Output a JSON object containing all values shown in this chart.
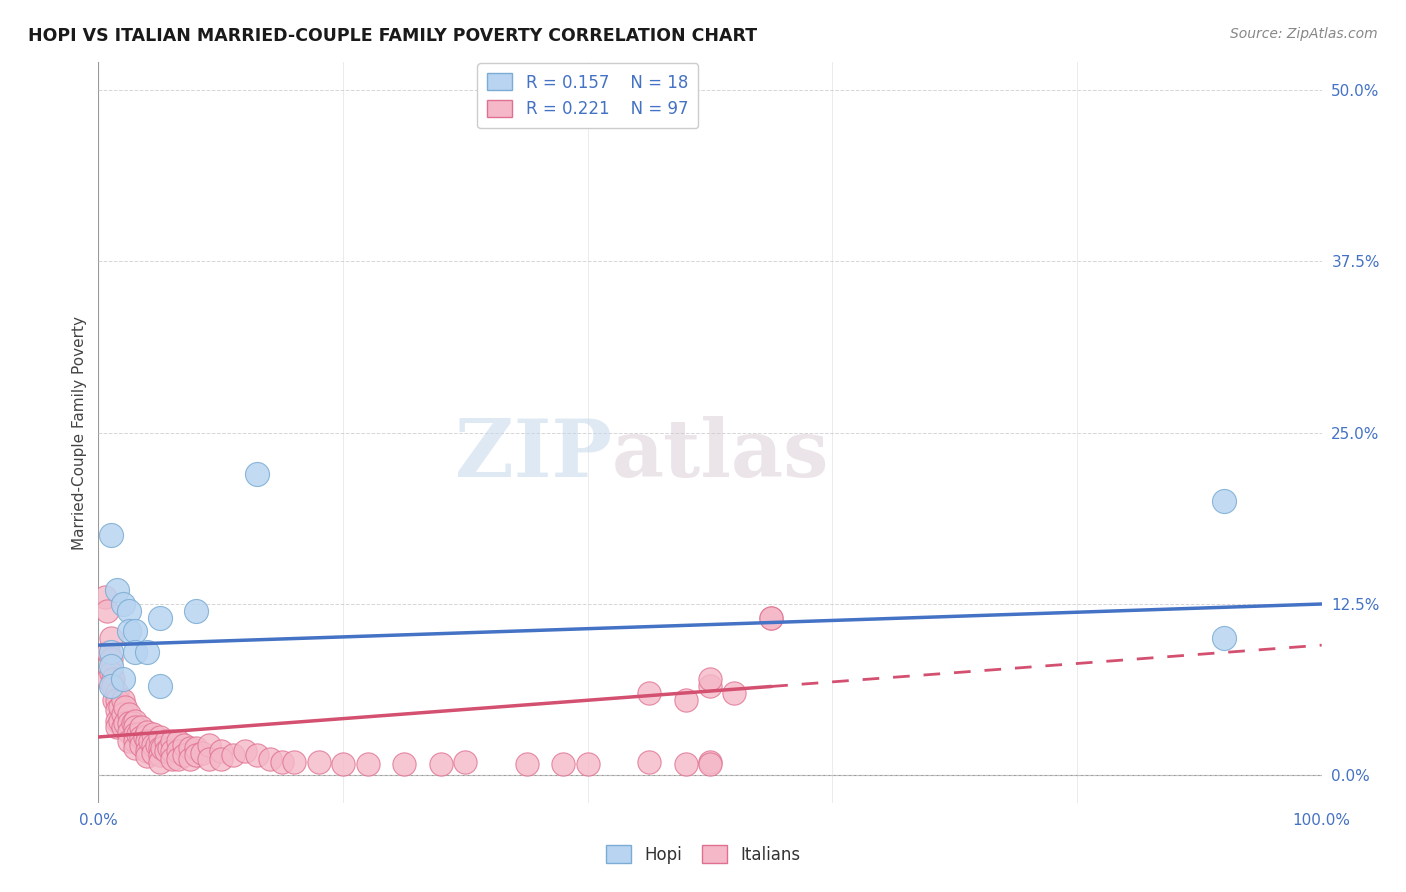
{
  "title": "HOPI VS ITALIAN MARRIED-COUPLE FAMILY POVERTY CORRELATION CHART",
  "source": "Source: ZipAtlas.com",
  "ylabel": "Married-Couple Family Poverty",
  "xlim": [
    0,
    1.0
  ],
  "ylim": [
    -0.02,
    0.52
  ],
  "yticks": [
    0.0,
    0.125,
    0.25,
    0.375,
    0.5
  ],
  "ytick_labels": [
    "0.0%",
    "12.5%",
    "25.0%",
    "37.5%",
    "50.0%"
  ],
  "hopi_color": "#b8d4f0",
  "hopi_edge_color": "#7aacd4",
  "italian_color": "#f4b8c8",
  "italian_edge_color": "#e07090",
  "hopi_R": 0.157,
  "hopi_N": 18,
  "italian_R": 0.221,
  "italian_N": 97,
  "legend_label_hopi": "Hopi",
  "legend_label_italian": "Italians",
  "watermark_zip": "ZIP",
  "watermark_atlas": "atlas",
  "hopi_line_color": "#4472c4",
  "italian_line_color": "#d45070",
  "italian_line_solid_end": 0.55,
  "italian_line_dash_start": 0.55,
  "background_color": "#ffffff",
  "grid_color": "#cccccc",
  "hopi_line_y0": 0.095,
  "hopi_line_y1": 0.125,
  "italian_line_y0": 0.028,
  "italian_line_y1": 0.095,
  "hopi_x": [
    0.01,
    0.015,
    0.02,
    0.025,
    0.025,
    0.03,
    0.03,
    0.04,
    0.05,
    0.08,
    0.13,
    0.92,
    0.92,
    0.01,
    0.01,
    0.01,
    0.02,
    0.05
  ],
  "hopi_y": [
    0.175,
    0.135,
    0.125,
    0.12,
    0.105,
    0.105,
    0.09,
    0.09,
    0.115,
    0.12,
    0.22,
    0.2,
    0.1,
    0.09,
    0.08,
    0.065,
    0.07,
    0.065
  ],
  "italian_x": [
    0.005,
    0.007,
    0.008,
    0.008,
    0.01,
    0.01,
    0.01,
    0.012,
    0.012,
    0.013,
    0.015,
    0.015,
    0.015,
    0.015,
    0.015,
    0.018,
    0.018,
    0.02,
    0.02,
    0.02,
    0.022,
    0.022,
    0.025,
    0.025,
    0.025,
    0.025,
    0.028,
    0.03,
    0.03,
    0.03,
    0.03,
    0.03,
    0.032,
    0.035,
    0.035,
    0.035,
    0.038,
    0.04,
    0.04,
    0.04,
    0.04,
    0.042,
    0.045,
    0.045,
    0.045,
    0.048,
    0.05,
    0.05,
    0.05,
    0.05,
    0.052,
    0.055,
    0.055,
    0.058,
    0.06,
    0.06,
    0.06,
    0.065,
    0.065,
    0.065,
    0.07,
    0.07,
    0.075,
    0.075,
    0.08,
    0.08,
    0.085,
    0.09,
    0.09,
    0.1,
    0.1,
    0.11,
    0.12,
    0.13,
    0.14,
    0.15,
    0.16,
    0.18,
    0.2,
    0.22,
    0.25,
    0.28,
    0.3,
    0.35,
    0.38,
    0.4,
    0.45,
    0.48,
    0.5,
    0.5,
    0.55,
    0.55,
    0.5,
    0.52,
    0.45,
    0.48,
    0.5
  ],
  "italian_y": [
    0.13,
    0.12,
    0.09,
    0.07,
    0.1,
    0.085,
    0.075,
    0.07,
    0.065,
    0.055,
    0.06,
    0.055,
    0.048,
    0.04,
    0.035,
    0.05,
    0.04,
    0.055,
    0.045,
    0.035,
    0.05,
    0.038,
    0.045,
    0.038,
    0.032,
    0.025,
    0.038,
    0.04,
    0.035,
    0.03,
    0.025,
    0.02,
    0.03,
    0.035,
    0.028,
    0.022,
    0.028,
    0.032,
    0.025,
    0.018,
    0.014,
    0.025,
    0.03,
    0.022,
    0.016,
    0.022,
    0.028,
    0.02,
    0.015,
    0.01,
    0.02,
    0.025,
    0.018,
    0.02,
    0.025,
    0.018,
    0.012,
    0.025,
    0.018,
    0.012,
    0.022,
    0.015,
    0.02,
    0.012,
    0.02,
    0.015,
    0.016,
    0.022,
    0.012,
    0.018,
    0.012,
    0.015,
    0.018,
    0.015,
    0.012,
    0.01,
    0.01,
    0.01,
    0.008,
    0.008,
    0.008,
    0.008,
    0.01,
    0.008,
    0.008,
    0.008,
    0.01,
    0.008,
    0.01,
    0.008,
    0.115,
    0.115,
    0.065,
    0.06,
    0.06,
    0.055,
    0.07
  ]
}
